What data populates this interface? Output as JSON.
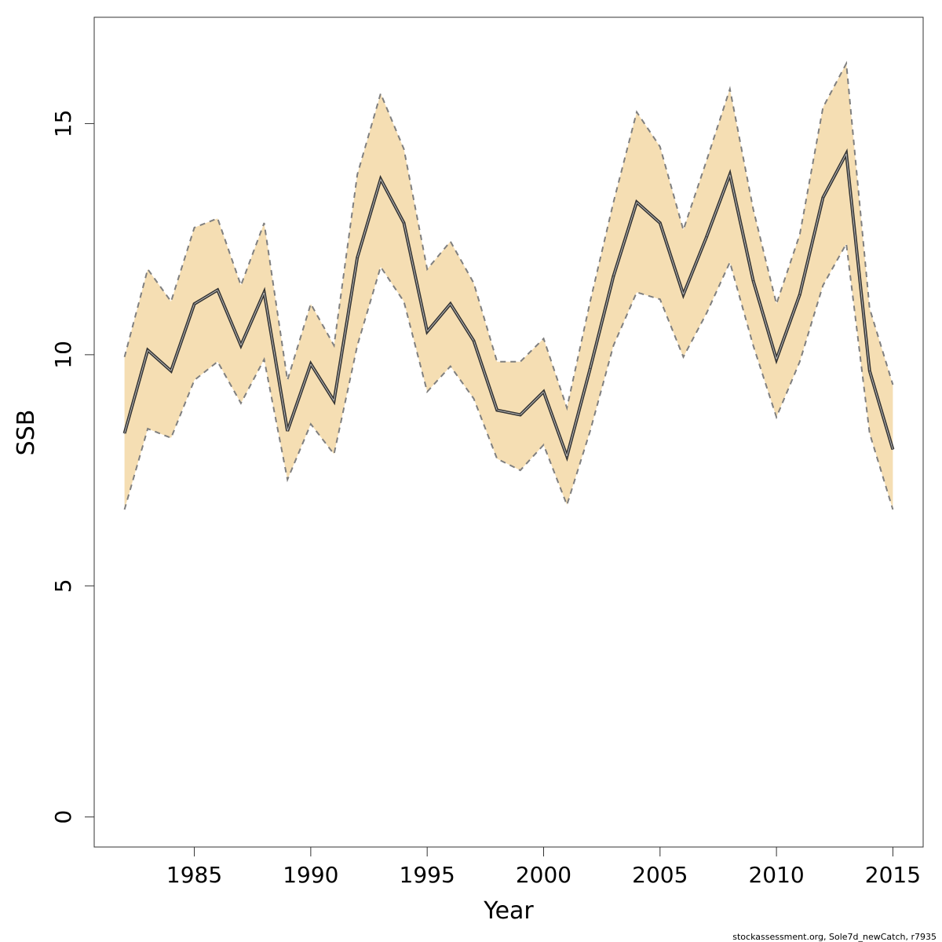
{
  "chart_data": {
    "type": "line",
    "xlabel": "Year",
    "ylabel": "SSB",
    "xlim": [
      1980.7,
      2016.3
    ],
    "ylim": [
      -0.65,
      17.3
    ],
    "x_ticks": [
      1985,
      1990,
      1995,
      2000,
      2005,
      2010,
      2015
    ],
    "y_ticks": [
      0,
      5,
      10,
      15
    ],
    "x": [
      1982,
      1983,
      1984,
      1985,
      1986,
      1987,
      1988,
      1989,
      1990,
      1991,
      1992,
      1993,
      1994,
      1995,
      1996,
      1997,
      1998,
      1999,
      2000,
      2001,
      2002,
      2003,
      2004,
      2005,
      2006,
      2007,
      2008,
      2009,
      2010,
      2011,
      2012,
      2013,
      2014,
      2015
    ],
    "series": [
      {
        "values": [
          8.3,
          10.1,
          9.65,
          11.1,
          11.4,
          10.2,
          11.35,
          8.35,
          9.8,
          9.0,
          12.1,
          13.8,
          12.85,
          10.5,
          11.1,
          10.3,
          8.8,
          8.7,
          9.2,
          7.8,
          9.7,
          11.7,
          13.3,
          12.85,
          11.3,
          12.55,
          13.9,
          11.6,
          9.9,
          11.3,
          13.4,
          14.35,
          9.65,
          7.95
        ],
        "lower": [
          6.65,
          8.4,
          8.2,
          9.45,
          9.85,
          8.95,
          9.9,
          7.3,
          8.5,
          7.85,
          10.2,
          11.9,
          11.15,
          9.2,
          9.75,
          9.05,
          7.75,
          7.5,
          8.05,
          6.75,
          8.35,
          10.2,
          11.35,
          11.2,
          9.95,
          10.9,
          12.0,
          10.2,
          8.65,
          9.85,
          11.5,
          12.4,
          8.3,
          6.65
        ],
        "upper": [
          9.95,
          11.85,
          11.15,
          12.75,
          12.95,
          11.5,
          12.85,
          9.45,
          11.1,
          10.2,
          13.9,
          15.65,
          14.45,
          11.85,
          12.45,
          11.55,
          9.85,
          9.85,
          10.35,
          8.85,
          11.15,
          13.3,
          15.25,
          14.5,
          12.7,
          14.2,
          15.75,
          13.15,
          11.1,
          12.6,
          15.35,
          16.3,
          11.0,
          9.35
        ]
      }
    ],
    "colors": {
      "band_fill": "#f5deb3",
      "band_edge": "#7f7f7f",
      "line": "#333333"
    }
  },
  "footer_text": "stockassessment.org, Sole7d_newCatch, r7935"
}
